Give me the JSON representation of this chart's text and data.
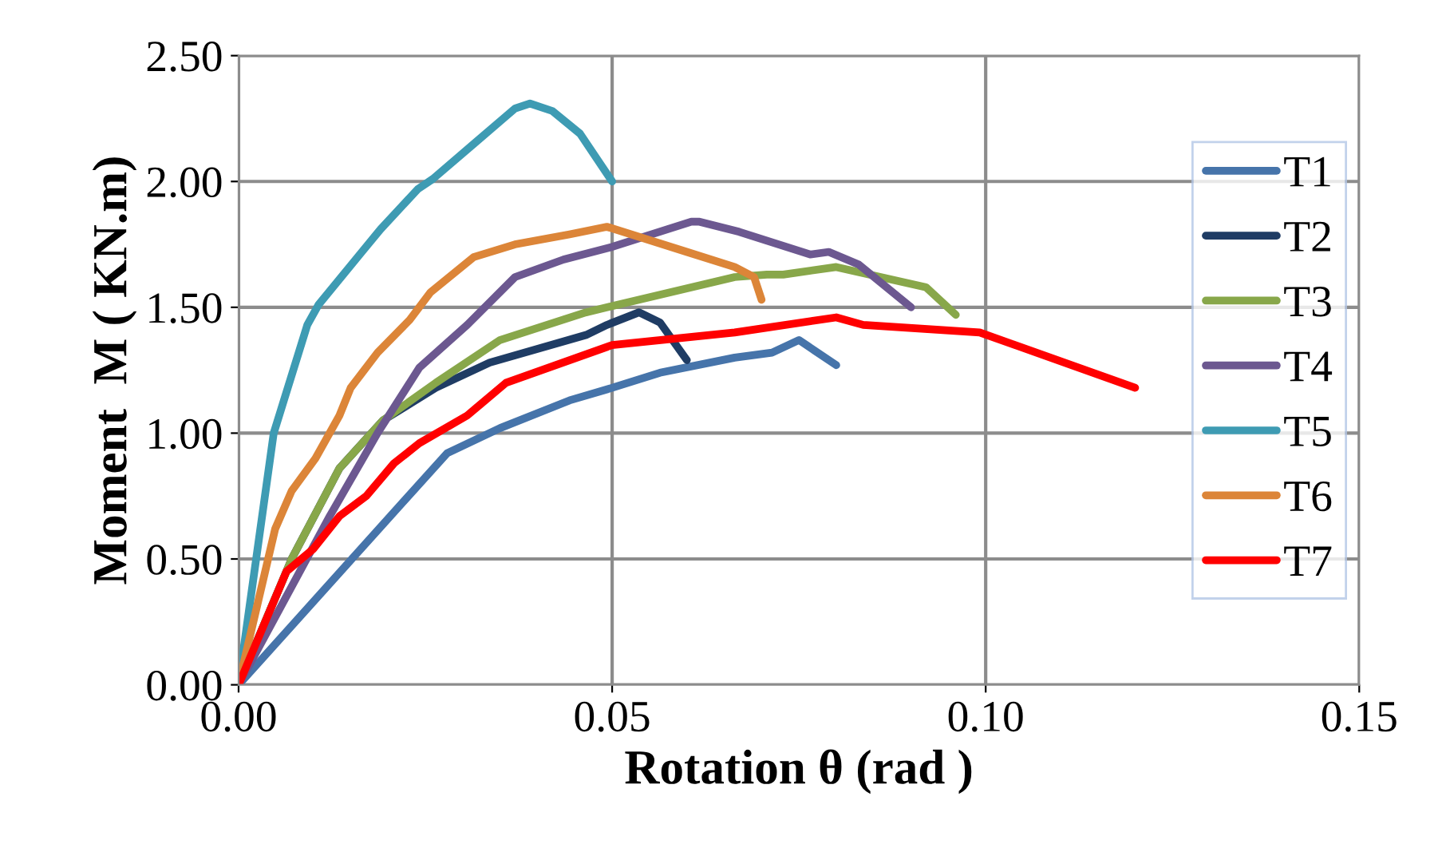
{
  "chart_data": {
    "type": "line",
    "xlabel": "Rotation θ (rad )",
    "ylabel": "Moment  M ( KN.m)",
    "xlim": [
      0,
      0.15
    ],
    "ylim": [
      0,
      2.5
    ],
    "xticks": [
      {
        "value": 0,
        "label": "0.00"
      },
      {
        "value": 0.05,
        "label": "0.05"
      },
      {
        "value": 0.1,
        "label": "0.10"
      },
      {
        "value": 0.15,
        "label": "0.15"
      }
    ],
    "yticks": [
      {
        "value": 0,
        "label": "0.00"
      },
      {
        "value": 0.5,
        "label": "0.50"
      },
      {
        "value": 1,
        "label": "1.00"
      },
      {
        "value": 1.5,
        "label": "1.50"
      },
      {
        "value": 2,
        "label": "2.00"
      },
      {
        "value": 2.5,
        "label": "2.50"
      }
    ],
    "grid": true,
    "legend": "right",
    "marker": "none",
    "line_style": "solid",
    "series": [
      {
        "name": "T1",
        "color": "#4674aa",
        "x": [
          0,
          0.0279,
          0.035,
          0.0443,
          0.05,
          0.0564,
          0.0664,
          0.0714,
          0.075,
          0.08
        ],
        "values": [
          0,
          0.92,
          1.02,
          1.13,
          1.18,
          1.24,
          1.3,
          1.32,
          1.37,
          1.27
        ]
      },
      {
        "name": "T2",
        "color": "#1f3c64",
        "x": [
          0,
          0.0071,
          0.0135,
          0.0193,
          0.0264,
          0.0336,
          0.0465,
          0.0493,
          0.0536,
          0.0564,
          0.06
        ],
        "values": [
          0,
          0.5,
          0.86,
          1.05,
          1.18,
          1.28,
          1.39,
          1.43,
          1.48,
          1.44,
          1.29
        ]
      },
      {
        "name": "T3",
        "color": "#88a74a",
        "x": [
          0,
          0.0071,
          0.0135,
          0.0193,
          0.0264,
          0.035,
          0.0465,
          0.0664,
          0.0707,
          0.0729,
          0.08,
          0.092,
          0.096
        ],
        "values": [
          0,
          0.5,
          0.86,
          1.05,
          1.2,
          1.37,
          1.48,
          1.62,
          1.63,
          1.63,
          1.66,
          1.58,
          1.47
        ]
      },
      {
        "name": "T4",
        "color": "#6c5890",
        "x": [
          0,
          0.0122,
          0.0186,
          0.0242,
          0.0306,
          0.037,
          0.0435,
          0.05,
          0.0606,
          0.0617,
          0.067,
          0.0765,
          0.079,
          0.083,
          0.09
        ],
        "values": [
          0,
          0.67,
          1.0,
          1.26,
          1.43,
          1.62,
          1.69,
          1.74,
          1.84,
          1.84,
          1.8,
          1.71,
          1.72,
          1.67,
          1.5
        ]
      },
      {
        "name": "T5",
        "color": "#3e9bb3",
        "x": [
          0,
          0.0047,
          0.0092,
          0.0107,
          0.0165,
          0.019,
          0.024,
          0.026,
          0.0315,
          0.037,
          0.039,
          0.042,
          0.0457,
          0.05
        ],
        "values": [
          0,
          1.0,
          1.43,
          1.51,
          1.72,
          1.81,
          1.97,
          2.01,
          2.15,
          2.29,
          2.31,
          2.28,
          2.19,
          2.0
        ]
      },
      {
        "name": "T6",
        "color": "#dc8538",
        "x": [
          0,
          0.0049,
          0.0071,
          0.0103,
          0.0135,
          0.015,
          0.0186,
          0.0229,
          0.0257,
          0.0315,
          0.037,
          0.0443,
          0.0493,
          0.06,
          0.0664,
          0.069,
          0.07
        ],
        "values": [
          0,
          0.62,
          0.77,
          0.9,
          1.07,
          1.18,
          1.32,
          1.45,
          1.56,
          1.7,
          1.75,
          1.79,
          1.82,
          1.72,
          1.66,
          1.62,
          1.53
        ]
      },
      {
        "name": "T7",
        "color": "#ff0000",
        "x": [
          0,
          0.0064,
          0.01,
          0.0135,
          0.0171,
          0.0208,
          0.0242,
          0.0306,
          0.0358,
          0.05,
          0.0664,
          0.08,
          0.0836,
          0.0992,
          0.12
        ],
        "values": [
          0,
          0.45,
          0.54,
          0.67,
          0.75,
          0.88,
          0.96,
          1.07,
          1.2,
          1.35,
          1.4,
          1.46,
          1.43,
          1.4,
          1.18
        ]
      }
    ]
  }
}
